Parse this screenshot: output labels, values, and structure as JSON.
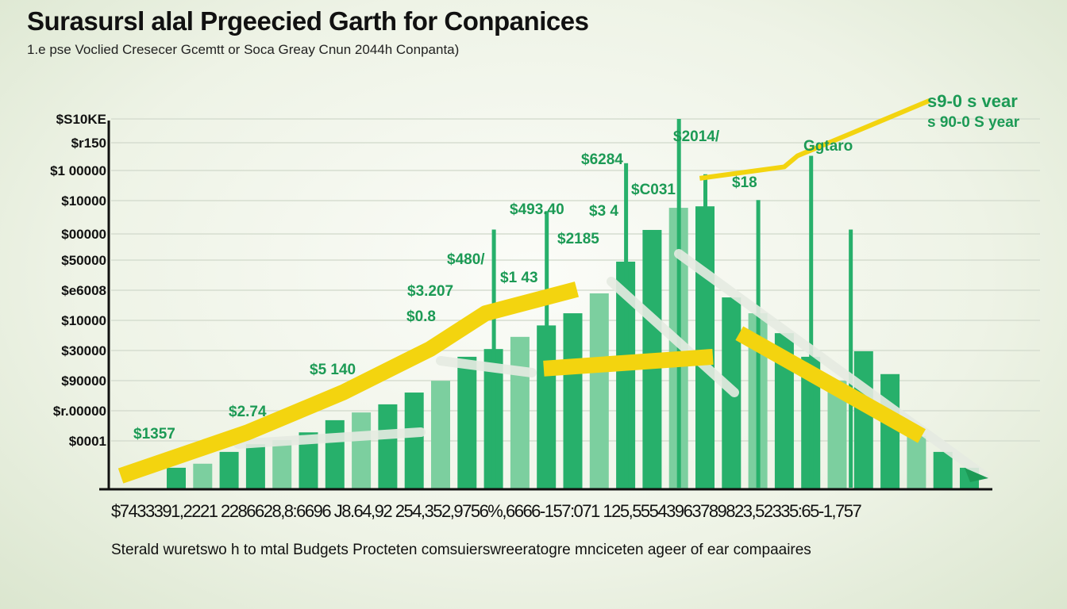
{
  "chart_data": {
    "type": "bar",
    "title": "Surasursl alal Prgeecied Garth for Conpanices",
    "subtitle": "1.e pse Voclied Cresecer Gcemtt or Soca Greay Cnun 2044h Conpanta)",
    "xlabel": "Sterald wuretswo h to mtal Budgets Procteten comsuierswreeratogre mnciceten ageer of ear compaaires",
    "x_tick_text": "$7433391,2221 2286628,8:6696 J8.64,92 254,352,9756%,6666-157:071 125,55543963789823,52335:65-1,757",
    "ylabel": "",
    "y_ticks": [
      "$S10KE",
      "$r150",
      "$1 00000",
      "$10000",
      "$00000",
      "$50000",
      "$e6008",
      "$10000",
      "$30000",
      "$90000",
      "$r.00000",
      "$0001"
    ],
    "ylim": [
      0,
      100
    ],
    "grid": true,
    "colors": {
      "bars": "#27b06b",
      "bars_light": "#7ccf9f",
      "trend": "#f3d40f",
      "arrow": "#e6ebe2",
      "label": "#1c9a55"
    },
    "values": [
      5.4,
      6.5,
      9.7,
      11.8,
      12.9,
      15,
      18.3,
      20.4,
      22.6,
      25.8,
      29,
      35.5,
      37.6,
      40.9,
      44,
      47.3,
      52.7,
      61.3,
      69.9,
      75.9,
      76.3,
      51.6,
      47.3,
      41.9,
      35.5,
      29,
      37,
      30.8,
      14,
      9.7,
      5.4
    ],
    "trend_lines": [
      [
        [
          -2.1,
          3.2
        ],
        [
          2.7,
          15
        ],
        [
          6.3,
          25.8
        ],
        [
          9.6,
          37.6
        ],
        [
          11.7,
          47.3
        ],
        [
          15.15,
          53.8
        ]
      ],
      [
        [
          13.9,
          32.3
        ],
        [
          20.3,
          35.5
        ]
      ],
      [
        [
          21.3,
          41.9
        ],
        [
          28.2,
          14
        ]
      ],
      [
        [
          19.8,
          83.9
        ],
        [
          23,
          87
        ],
        [
          23.5,
          90
        ],
        [
          28.5,
          105
        ]
      ]
    ],
    "annotations": [
      "$1357",
      "$2.74",
      "$5 140",
      "$0.8",
      "$3.207",
      "$480/",
      "$1 43",
      "$493.40",
      "$3 4",
      "$2185",
      "$6284",
      "$2014/",
      "$C031",
      "$18",
      "Ggtaro",
      "s 90-0 S year"
    ],
    "legend": "s9-0 s vear"
  }
}
